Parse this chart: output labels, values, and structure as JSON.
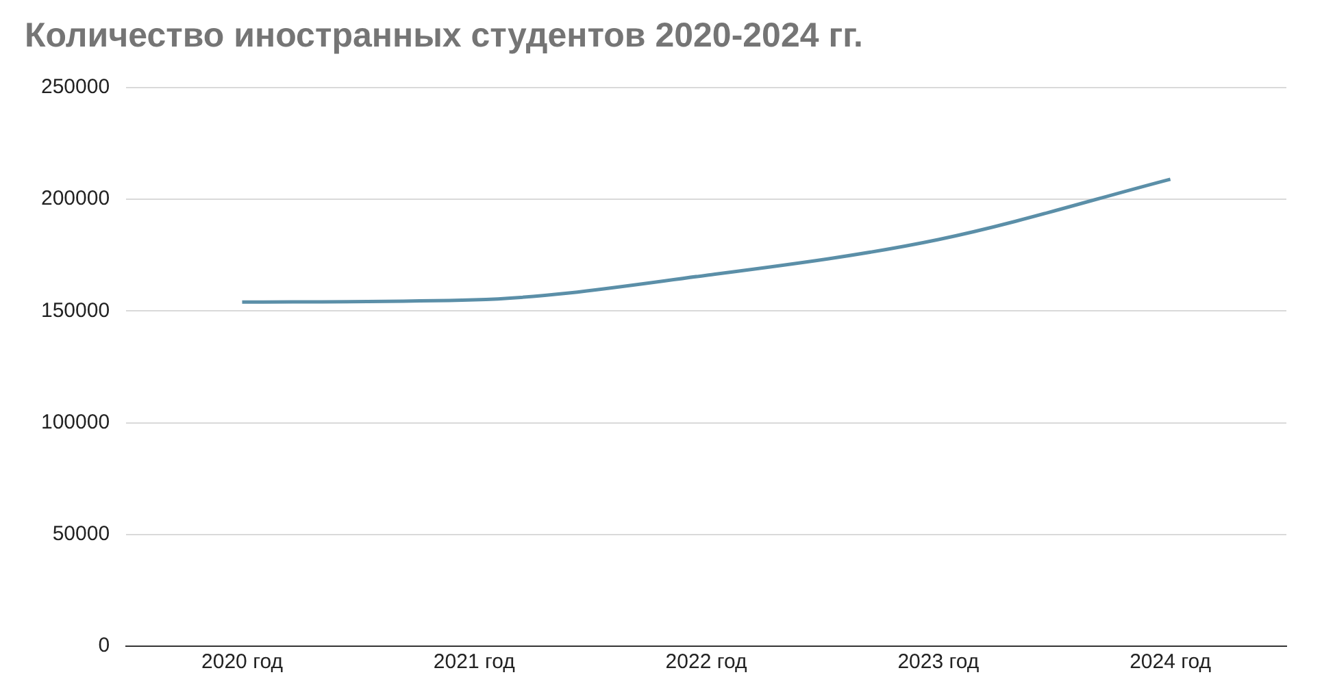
{
  "chart_data": {
    "type": "line",
    "title": "Количество иностранных студентов 2020-2024 гг.",
    "categories": [
      "2020 год",
      "2021 год",
      "2022 год",
      "2023 год",
      "2024 год"
    ],
    "series": [
      {
        "color": "#5b8fa8",
        "values": [
          154000,
          155000,
          166000,
          182000,
          209000
        ]
      }
    ],
    "ylim": [
      0,
      250000
    ],
    "yticks": [
      0,
      50000,
      100000,
      150000,
      200000,
      250000
    ],
    "grid": "y",
    "legend": false,
    "marker": "none",
    "line_style": "solid"
  }
}
